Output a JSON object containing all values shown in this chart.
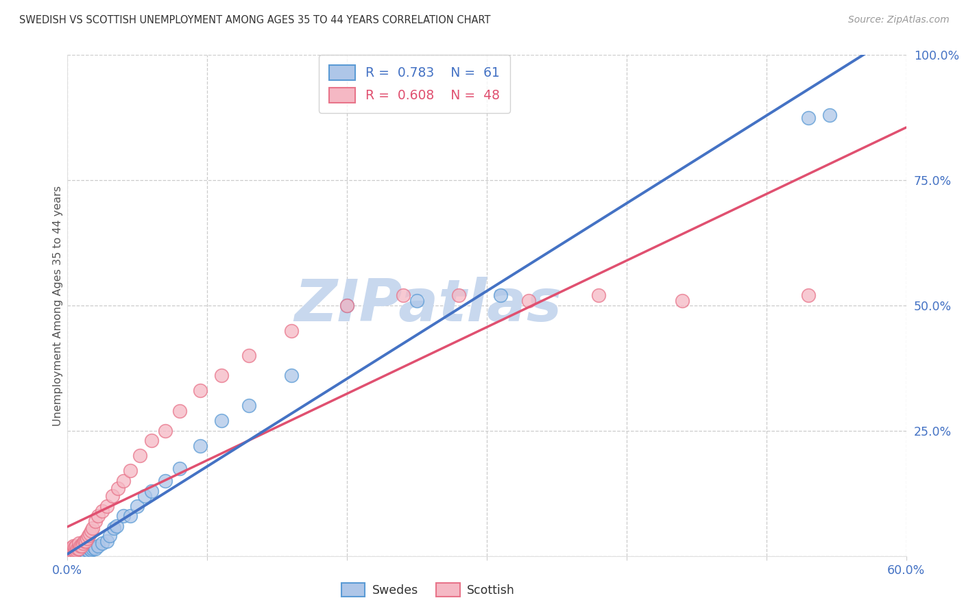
{
  "title": "SWEDISH VS SCOTTISH UNEMPLOYMENT AMONG AGES 35 TO 44 YEARS CORRELATION CHART",
  "source": "Source: ZipAtlas.com",
  "ylabel": "Unemployment Among Ages 35 to 44 years",
  "title_color": "#333333",
  "source_color": "#999999",
  "tick_color": "#4472c4",
  "grid_color": "#cccccc",
  "background_color": "#ffffff",
  "swedes_color": "#aec6e8",
  "scottish_color": "#f5b8c4",
  "swedes_edge_color": "#5b9bd5",
  "scottish_edge_color": "#e8748a",
  "swedes_line_color": "#4472c4",
  "scottish_line_color": "#e05070",
  "legend_swedes_R": "0.783",
  "legend_swedes_N": "61",
  "legend_scottish_R": "0.608",
  "legend_scottish_N": "48",
  "swedes_x": [
    0.001,
    0.001,
    0.002,
    0.002,
    0.003,
    0.003,
    0.003,
    0.004,
    0.004,
    0.004,
    0.005,
    0.005,
    0.005,
    0.005,
    0.006,
    0.006,
    0.006,
    0.007,
    0.007,
    0.007,
    0.008,
    0.008,
    0.008,
    0.009,
    0.009,
    0.01,
    0.01,
    0.011,
    0.011,
    0.012,
    0.013,
    0.013,
    0.014,
    0.015,
    0.016,
    0.017,
    0.018,
    0.019,
    0.02,
    0.022,
    0.025,
    0.028,
    0.03,
    0.033,
    0.035,
    0.04,
    0.045,
    0.05,
    0.055,
    0.06,
    0.07,
    0.08,
    0.095,
    0.11,
    0.13,
    0.16,
    0.2,
    0.25,
    0.31,
    0.53,
    0.545
  ],
  "swedes_y": [
    0.005,
    0.01,
    0.005,
    0.01,
    0.005,
    0.008,
    0.012,
    0.005,
    0.008,
    0.012,
    0.005,
    0.008,
    0.01,
    0.015,
    0.005,
    0.008,
    0.012,
    0.005,
    0.01,
    0.015,
    0.005,
    0.01,
    0.015,
    0.005,
    0.012,
    0.008,
    0.015,
    0.008,
    0.012,
    0.01,
    0.008,
    0.015,
    0.012,
    0.01,
    0.015,
    0.012,
    0.015,
    0.018,
    0.015,
    0.02,
    0.025,
    0.03,
    0.04,
    0.055,
    0.06,
    0.08,
    0.08,
    0.1,
    0.12,
    0.13,
    0.15,
    0.175,
    0.22,
    0.27,
    0.3,
    0.36,
    0.5,
    0.51,
    0.52,
    0.875,
    0.88
  ],
  "scottish_x": [
    0.001,
    0.001,
    0.002,
    0.002,
    0.003,
    0.003,
    0.004,
    0.004,
    0.005,
    0.005,
    0.006,
    0.006,
    0.007,
    0.008,
    0.008,
    0.009,
    0.01,
    0.011,
    0.012,
    0.013,
    0.014,
    0.015,
    0.016,
    0.017,
    0.018,
    0.02,
    0.022,
    0.025,
    0.028,
    0.032,
    0.036,
    0.04,
    0.045,
    0.052,
    0.06,
    0.07,
    0.08,
    0.095,
    0.11,
    0.13,
    0.16,
    0.2,
    0.24,
    0.28,
    0.33,
    0.38,
    0.44,
    0.53
  ],
  "scottish_y": [
    0.005,
    0.012,
    0.008,
    0.015,
    0.01,
    0.018,
    0.012,
    0.02,
    0.01,
    0.018,
    0.012,
    0.02,
    0.015,
    0.015,
    0.025,
    0.02,
    0.02,
    0.025,
    0.03,
    0.03,
    0.035,
    0.04,
    0.045,
    0.05,
    0.055,
    0.07,
    0.08,
    0.09,
    0.1,
    0.12,
    0.135,
    0.15,
    0.17,
    0.2,
    0.23,
    0.25,
    0.29,
    0.33,
    0.36,
    0.4,
    0.45,
    0.5,
    0.52,
    0.52,
    0.51,
    0.52,
    0.51,
    0.52
  ],
  "xlim": [
    0.0,
    0.6
  ],
  "ylim": [
    0.0,
    1.0
  ],
  "xtick_positions": [
    0.0,
    0.1,
    0.2,
    0.3,
    0.4,
    0.5,
    0.6
  ],
  "ytick_positions": [
    0.0,
    0.25,
    0.5,
    0.75,
    1.0
  ],
  "watermark": "ZIPatlas",
  "watermark_color": "#c8d8ee"
}
